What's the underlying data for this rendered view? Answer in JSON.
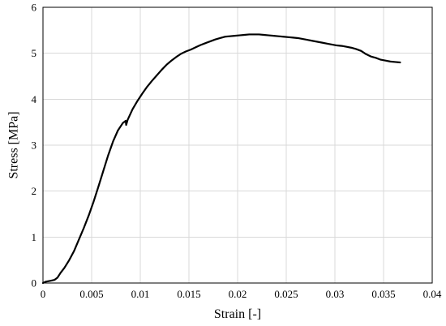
{
  "chart_data": {
    "type": "line",
    "title": "",
    "xlabel": "Strain [-]",
    "ylabel": "Stress [MPa]",
    "xlim": [
      0,
      0.04
    ],
    "ylim": [
      0,
      6
    ],
    "grid": true,
    "legend": "none",
    "line_color": "#000000",
    "grid_color": "#d9d9d9",
    "x_ticks": [
      0,
      0.005,
      0.01,
      0.015,
      0.02,
      0.025,
      0.03,
      0.035,
      0.04
    ],
    "x_tick_labels": [
      "0",
      "0.005",
      "0.01",
      "0.015",
      "0.02",
      "0.025",
      "0.03",
      "0.035",
      "0.04"
    ],
    "y_ticks": [
      0,
      1,
      2,
      3,
      4,
      5,
      6
    ],
    "y_tick_labels": [
      "0",
      "1",
      "2",
      "3",
      "4",
      "5",
      "6"
    ],
    "series": [
      {
        "x": [
          0,
          0.0003,
          0.0008,
          0.0012,
          0.0015,
          0.0018,
          0.0022,
          0.0027,
          0.0032,
          0.0037,
          0.0042,
          0.0047,
          0.0052,
          0.0057,
          0.0062,
          0.0067,
          0.0072,
          0.0077,
          0.0082,
          0.0085,
          0.00855,
          0.0087,
          0.0092,
          0.0097,
          0.0102,
          0.0107,
          0.0112,
          0.0117,
          0.0122,
          0.0127,
          0.0132,
          0.0137,
          0.0142,
          0.0147,
          0.0152,
          0.0157,
          0.0162,
          0.0167,
          0.0172,
          0.0177,
          0.0182,
          0.0187,
          0.0192,
          0.0197,
          0.0202,
          0.0207,
          0.0212,
          0.0217,
          0.0222,
          0.0227,
          0.0232,
          0.0237,
          0.0242,
          0.0247,
          0.0252,
          0.0257,
          0.0262,
          0.0267,
          0.0272,
          0.0277,
          0.0282,
          0.0287,
          0.0292,
          0.0297,
          0.0302,
          0.0307,
          0.0312,
          0.0317,
          0.0322,
          0.0327,
          0.0332,
          0.0337,
          0.0342,
          0.0347,
          0.0352,
          0.0357,
          0.0362,
          0.0367
        ],
        "y": [
          0,
          0.03,
          0.05,
          0.07,
          0.12,
          0.22,
          0.33,
          0.5,
          0.7,
          0.95,
          1.2,
          1.47,
          1.77,
          2.1,
          2.44,
          2.78,
          3.08,
          3.32,
          3.48,
          3.53,
          3.44,
          3.55,
          3.78,
          3.96,
          4.12,
          4.27,
          4.4,
          4.52,
          4.64,
          4.75,
          4.84,
          4.92,
          4.99,
          5.04,
          5.08,
          5.13,
          5.18,
          5.22,
          5.26,
          5.3,
          5.33,
          5.36,
          5.37,
          5.38,
          5.39,
          5.4,
          5.41,
          5.41,
          5.41,
          5.4,
          5.39,
          5.38,
          5.37,
          5.36,
          5.35,
          5.34,
          5.33,
          5.31,
          5.29,
          5.27,
          5.25,
          5.23,
          5.21,
          5.19,
          5.17,
          5.16,
          5.14,
          5.12,
          5.09,
          5.05,
          4.98,
          4.93,
          4.9,
          4.86,
          4.84,
          4.82,
          4.81,
          4.8
        ]
      }
    ]
  }
}
